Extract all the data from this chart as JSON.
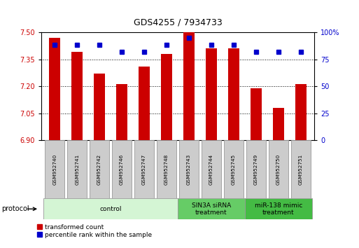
{
  "title": "GDS4255 / 7934733",
  "samples": [
    "GSM952740",
    "GSM952741",
    "GSM952742",
    "GSM952746",
    "GSM952747",
    "GSM952748",
    "GSM952743",
    "GSM952744",
    "GSM952745",
    "GSM952749",
    "GSM952750",
    "GSM952751"
  ],
  "red_values": [
    7.47,
    7.39,
    7.27,
    7.21,
    7.31,
    7.38,
    7.5,
    7.41,
    7.41,
    7.19,
    7.08,
    7.21
  ],
  "blue_values": [
    88,
    88,
    88,
    82,
    82,
    88,
    95,
    88,
    88,
    82,
    82,
    82
  ],
  "ylim_left": [
    6.9,
    7.5
  ],
  "ylim_right": [
    0,
    100
  ],
  "yticks_left": [
    6.9,
    7.05,
    7.2,
    7.35,
    7.5
  ],
  "yticks_right": [
    0,
    25,
    50,
    75,
    100
  ],
  "groups": [
    {
      "label": "control",
      "start": 0,
      "end": 6,
      "color": "#d4f5d4"
    },
    {
      "label": "SIN3A siRNA\ntreatment",
      "start": 6,
      "end": 9,
      "color": "#66cc66"
    },
    {
      "label": "miR-138 mimic\ntreatment",
      "start": 9,
      "end": 12,
      "color": "#44bb44"
    }
  ],
  "red_color": "#cc0000",
  "blue_color": "#0000cc",
  "bar_width": 0.5,
  "protocol_label": "protocol",
  "legend_red": "transformed count",
  "legend_blue": "percentile rank within the sample",
  "right_axis_top_label": "100%"
}
